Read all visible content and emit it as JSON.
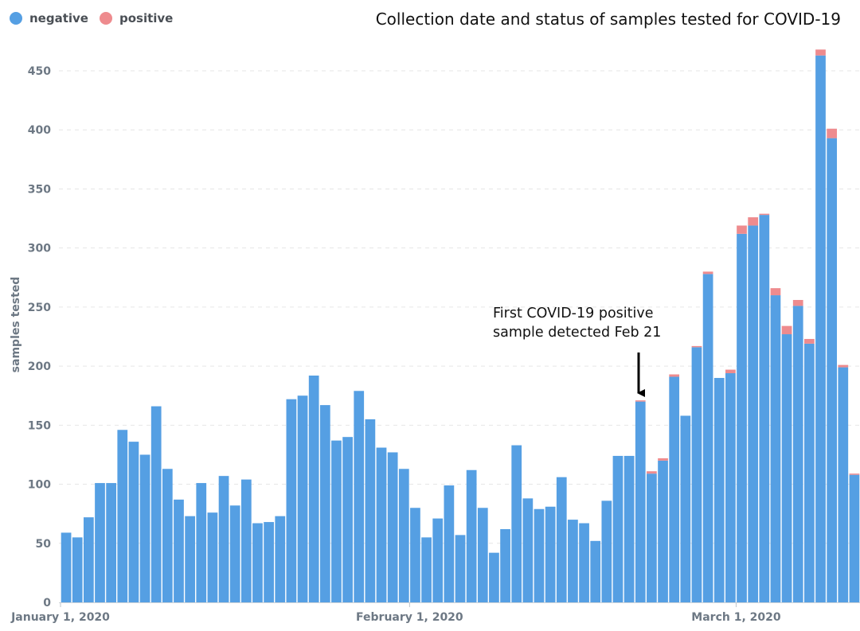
{
  "chart_data": {
    "type": "bar",
    "stacked": true,
    "title": "Collection date and status of samples tested for COVID-19",
    "ylabel": "samples tested",
    "xlabel": "",
    "ylim": [
      0,
      470
    ],
    "yticks": [
      0,
      50,
      100,
      150,
      200,
      250,
      300,
      350,
      400,
      450
    ],
    "x_start": "2020-01-01",
    "x_end": "2020-03-15",
    "x_tick_labels": [
      {
        "date": "2020-01-01",
        "label": "January 1, 2020"
      },
      {
        "date": "2020-02-01",
        "label": "February 1, 2020"
      },
      {
        "date": "2020-03-01",
        "label": "March 1, 2020"
      }
    ],
    "grid": true,
    "legend_position": "top-left",
    "series": [
      {
        "name": "negative",
        "color": "#559fe3",
        "values": [
          59,
          55,
          72,
          101,
          101,
          146,
          136,
          125,
          166,
          113,
          87,
          73,
          101,
          76,
          107,
          82,
          104,
          67,
          68,
          73,
          172,
          175,
          192,
          167,
          137,
          140,
          179,
          155,
          131,
          127,
          113,
          80,
          55,
          71,
          99,
          57,
          112,
          80,
          42,
          62,
          133,
          88,
          79,
          81,
          106,
          70,
          67,
          52,
          86,
          124,
          124,
          170,
          109,
          120,
          191,
          158,
          216,
          278,
          190,
          194,
          312,
          319,
          328,
          260,
          227,
          251,
          219,
          463,
          393,
          199,
          108
        ]
      },
      {
        "name": "positive",
        "color": "#ee8b8e",
        "values": [
          0,
          0,
          0,
          0,
          0,
          0,
          0,
          0,
          0,
          0,
          0,
          0,
          0,
          0,
          0,
          0,
          0,
          0,
          0,
          0,
          0,
          0,
          0,
          0,
          0,
          0,
          0,
          0,
          0,
          0,
          0,
          0,
          0,
          0,
          0,
          0,
          0,
          0,
          0,
          0,
          0,
          0,
          0,
          0,
          0,
          0,
          0,
          0,
          0,
          0,
          0,
          1,
          2,
          2,
          2,
          0,
          1,
          2,
          0,
          3,
          7,
          7,
          1,
          6,
          7,
          5,
          4,
          5,
          8,
          2,
          1
        ]
      }
    ],
    "annotation": {
      "lines": [
        "First COVID-19 positive",
        "sample detected Feb 21"
      ],
      "target_date": "2020-02-21"
    }
  }
}
